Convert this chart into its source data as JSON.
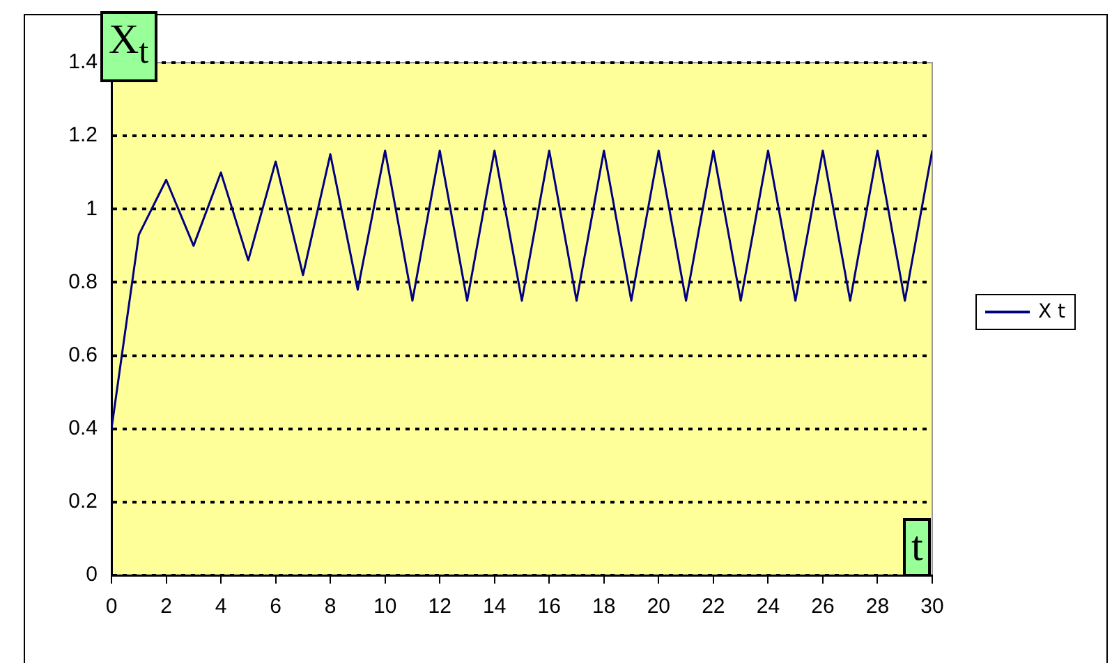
{
  "chart_data": {
    "type": "line",
    "xlabel": "t",
    "ylabel": "X$_{t}$",
    "x": [
      0,
      1,
      2,
      3,
      4,
      5,
      6,
      7,
      8,
      9,
      10,
      11,
      12,
      13,
      14,
      15,
      16,
      17,
      18,
      19,
      20,
      21,
      22,
      23,
      24,
      25,
      26,
      27,
      28,
      29,
      30
    ],
    "series": [
      {
        "name": "X t",
        "color": "#000080",
        "values": [
          0.4,
          0.93,
          1.08,
          0.9,
          1.1,
          0.86,
          1.13,
          0.82,
          1.15,
          0.78,
          1.16,
          0.75,
          1.16,
          0.75,
          1.16,
          0.75,
          1.16,
          0.75,
          1.16,
          0.75,
          1.16,
          0.75,
          1.16,
          0.75,
          1.16,
          0.75,
          1.16,
          0.75,
          1.16,
          0.75,
          1.16
        ]
      }
    ],
    "xlim": [
      0,
      30
    ],
    "xticks": [
      0,
      2,
      4,
      6,
      8,
      10,
      12,
      14,
      16,
      18,
      20,
      22,
      24,
      26,
      28,
      30
    ],
    "ylim": [
      0,
      1.4
    ],
    "yticks": [
      0,
      0.2,
      0.4,
      0.6,
      0.8,
      1,
      1.2,
      1.4
    ],
    "grid": "y",
    "legend": "right",
    "marker": "none",
    "line_style": "solid"
  }
}
